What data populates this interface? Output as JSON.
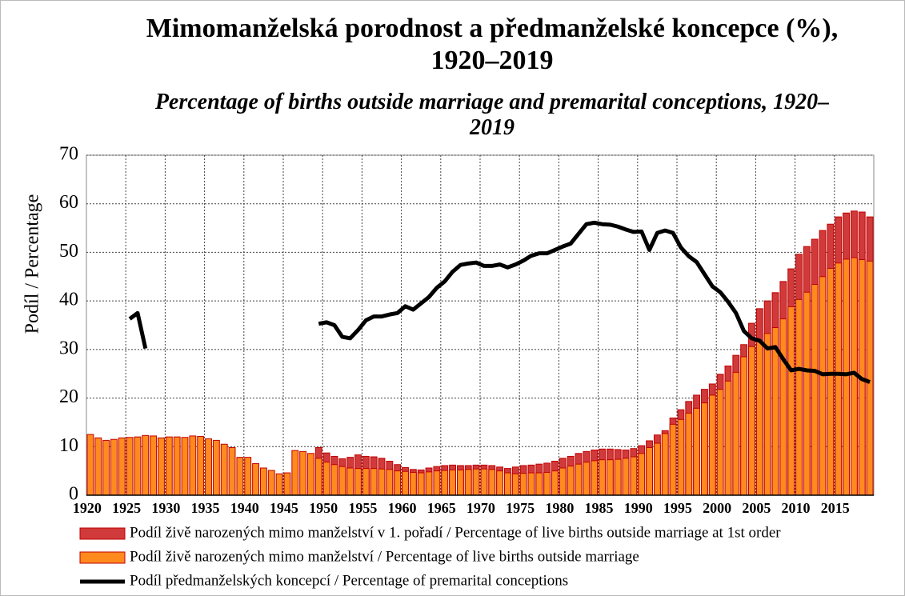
{
  "chart_data": {
    "type": "bar_line",
    "title": "Mimomanželská porodnost a předmanželské koncepce (%), 1920–2019",
    "subtitle": "Percentage of births outside marriage and premarital conceptions, 1920–2019",
    "y_label": "Podíl / Percentage",
    "categories": [
      "1920",
      null,
      null,
      null,
      null,
      "1925",
      null,
      null,
      null,
      null,
      "1930",
      null,
      null,
      null,
      null,
      "1935",
      null,
      null,
      null,
      null,
      "1940",
      null,
      null,
      null,
      null,
      "1945",
      null,
      null,
      null,
      null,
      "1950",
      null,
      null,
      null,
      null,
      "1955",
      null,
      null,
      null,
      null,
      "1960",
      null,
      null,
      null,
      null,
      "1965",
      null,
      null,
      null,
      null,
      "1970",
      null,
      null,
      null,
      null,
      "1975",
      null,
      null,
      null,
      null,
      "1980",
      null,
      null,
      null,
      null,
      "1985",
      null,
      null,
      null,
      null,
      "1990",
      null,
      null,
      null,
      null,
      "1995",
      null,
      null,
      null,
      null,
      "2000",
      null,
      null,
      null,
      null,
      "2005",
      null,
      null,
      null,
      null,
      "2010",
      null,
      null,
      null,
      null,
      "2015",
      null,
      null,
      null,
      null
    ],
    "series": [
      {
        "name": "Podíl živě narozených mimo manželství v 1. pořadí / Percentage of live births outside marriage at 1st order",
        "color": "#d03a3a",
        "kind": "bar",
        "values": [
          null,
          null,
          null,
          null,
          null,
          null,
          null,
          null,
          null,
          null,
          null,
          null,
          null,
          null,
          null,
          null,
          null,
          null,
          null,
          null,
          null,
          null,
          null,
          null,
          null,
          null,
          null,
          null,
          null,
          9.8,
          8.7,
          8.0,
          7.5,
          7.8,
          8.3,
          8.0,
          7.9,
          7.6,
          7.0,
          6.3,
          5.7,
          5.3,
          5.2,
          5.6,
          5.9,
          6.1,
          6.2,
          6.1,
          6.1,
          6.2,
          6.2,
          6.1,
          5.8,
          5.5,
          5.8,
          6.1,
          6.2,
          6.4,
          6.6,
          7.0,
          7.6,
          8.0,
          8.6,
          9.0,
          9.3,
          9.5,
          9.5,
          9.4,
          9.3,
          9.6,
          10.2,
          11.2,
          12.4,
          13.3,
          15.9,
          17.6,
          19.3,
          20.6,
          21.8,
          22.9,
          24.9,
          26.6,
          28.8,
          31.0,
          35.4,
          38.4,
          40.0,
          41.7,
          44.0,
          46.6,
          49.6,
          51.2,
          52.7,
          54.5,
          55.8,
          57.3,
          58.1,
          58.5,
          58.3,
          57.3
        ]
      },
      {
        "name": "Podíl živě narozených mimo manželství / Percentage of live births outside marriage",
        "color": "#ff8a1e",
        "kind": "bar",
        "values": [
          12.5,
          11.8,
          11.3,
          11.5,
          11.8,
          11.9,
          12.0,
          12.3,
          12.2,
          11.8,
          12.0,
          12.0,
          11.9,
          12.2,
          12.1,
          11.6,
          11.3,
          10.5,
          9.8,
          7.8,
          7.8,
          6.5,
          5.6,
          5.1,
          4.4,
          4.6,
          9.2,
          9.0,
          8.6,
          7.6,
          6.8,
          6.3,
          5.9,
          5.6,
          5.5,
          5.5,
          5.5,
          5.4,
          5.3,
          5.0,
          4.9,
          4.7,
          4.6,
          4.8,
          5.0,
          5.1,
          5.2,
          5.2,
          5.3,
          5.4,
          5.4,
          5.3,
          5.0,
          4.6,
          4.4,
          4.5,
          4.6,
          4.6,
          4.7,
          5.0,
          5.6,
          6.0,
          6.4,
          6.8,
          7.1,
          7.3,
          7.3,
          7.4,
          7.6,
          7.9,
          8.6,
          9.8,
          10.7,
          12.7,
          14.6,
          15.6,
          16.9,
          17.9,
          19.0,
          20.6,
          21.8,
          23.5,
          25.3,
          28.5,
          30.6,
          31.7,
          33.3,
          34.5,
          36.3,
          38.8,
          40.3,
          41.8,
          43.4,
          45.0,
          46.7,
          47.8,
          48.6,
          48.9,
          48.5,
          48.2
        ]
      },
      {
        "name": "Podíl předmanželských koncepcí / Percentage of premarital conceptions",
        "color": "#000000",
        "kind": "line",
        "values": [
          null,
          null,
          null,
          null,
          null,
          36.3,
          37.5,
          30.2,
          null,
          null,
          null,
          null,
          null,
          null,
          null,
          null,
          null,
          null,
          null,
          null,
          null,
          null,
          null,
          null,
          null,
          null,
          null,
          null,
          null,
          35.3,
          35.6,
          35.0,
          32.6,
          32.3,
          34.0,
          36.0,
          36.8,
          36.8,
          37.2,
          37.5,
          38.9,
          38.2,
          39.5,
          40.8,
          42.7,
          44.0,
          46.0,
          47.4,
          47.7,
          47.9,
          47.2,
          47.2,
          47.5,
          46.9,
          47.5,
          48.3,
          49.3,
          49.8,
          49.8,
          50.5,
          51.2,
          51.8,
          53.8,
          55.8,
          56.1,
          55.8,
          55.7,
          55.3,
          54.7,
          54.2,
          54.3,
          50.5,
          54.0,
          54.5,
          54.0,
          51.0,
          49.2,
          48.0,
          45.5,
          43.0,
          41.8,
          39.8,
          37.5,
          33.8,
          32.3,
          31.8,
          30.2,
          30.5,
          28.0,
          25.7,
          26.0,
          25.7,
          25.6,
          24.9,
          25.0,
          25.0,
          24.9,
          25.2,
          23.9,
          23.3
        ]
      }
    ],
    "ylim": [
      0,
      70
    ],
    "yticks": [
      0,
      10,
      20,
      30,
      40,
      50,
      60,
      70
    ],
    "grid": true,
    "legend": "bottom"
  }
}
